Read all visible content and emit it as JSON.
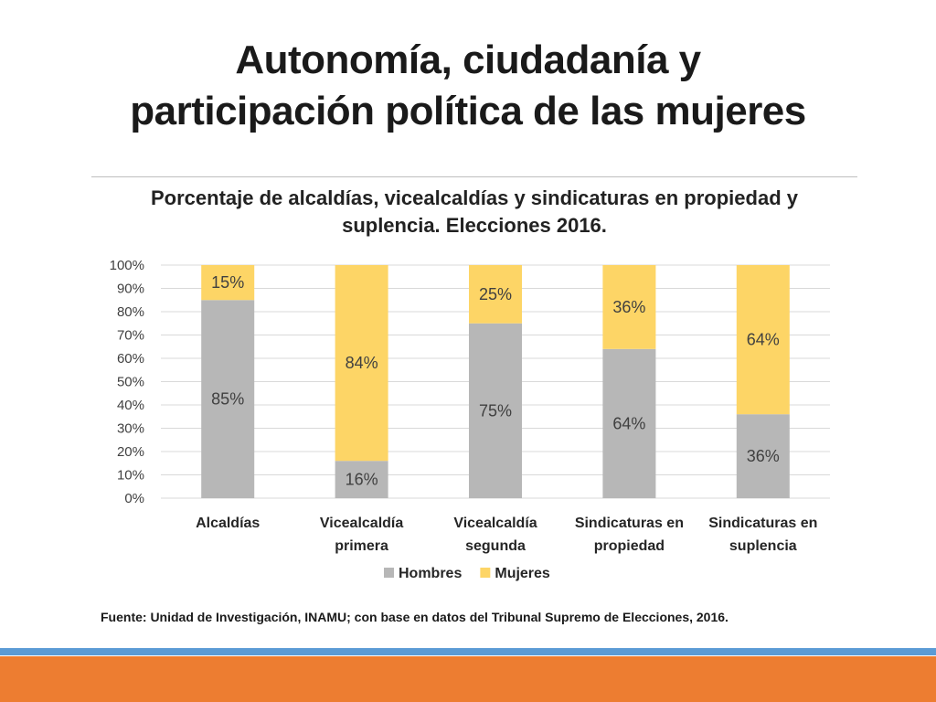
{
  "slide": {
    "title_line1": "Autonomía, ciudadanía y",
    "title_line2": "participación política de las mujeres",
    "source": "Fuente: Unidad de Investigación, INAMU; con base en datos del Tribunal Supremo de Elecciones, 2016."
  },
  "chart_data": {
    "type": "bar",
    "stacked": true,
    "percent_stacked": true,
    "title_line1": "Porcentaje de alcaldías, vicealcaldías y sindicaturas en propiedad y",
    "title_line2": "suplencia. Elecciones 2016.",
    "categories": [
      [
        "Alcaldías"
      ],
      [
        "Vicealcaldía",
        "primera"
      ],
      [
        "Vicealcaldía",
        "segunda"
      ],
      [
        "Sindicaturas en",
        "propiedad"
      ],
      [
        "Sindicaturas en",
        "suplencia"
      ]
    ],
    "series": [
      {
        "name": "Hombres",
        "values": [
          85,
          16,
          75,
          64,
          36
        ],
        "labels": [
          "85%",
          "16%",
          "75%",
          "64%",
          "36%"
        ],
        "color": "#b7b7b7"
      },
      {
        "name": "Mujeres",
        "values": [
          15,
          84,
          25,
          36,
          64
        ],
        "labels": [
          "15%",
          "84%",
          "25%",
          "36%",
          "64%"
        ],
        "color": "#fdd566"
      }
    ],
    "y_ticks": [
      "0%",
      "10%",
      "20%",
      "30%",
      "40%",
      "50%",
      "60%",
      "70%",
      "80%",
      "90%",
      "100%"
    ],
    "ylim": [
      0,
      100
    ],
    "grid": true,
    "legend_position": "bottom"
  },
  "colors": {
    "gridline": "#d9d9d9",
    "accent_blue": "#5b9bd5",
    "accent_orange": "#ed7d31"
  }
}
